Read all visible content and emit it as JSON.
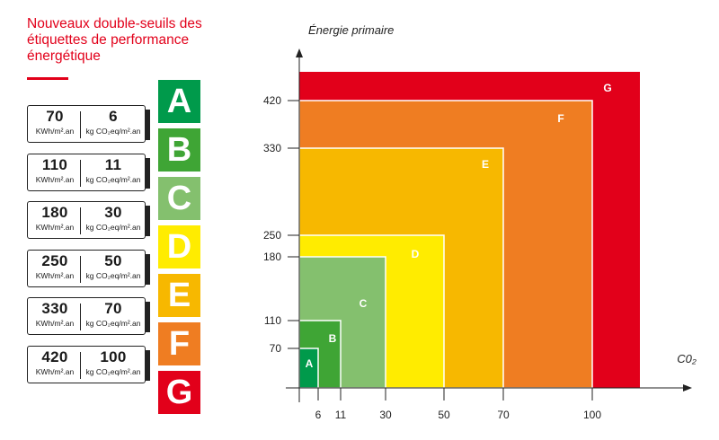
{
  "header": {
    "title": "Nouveaux double-seuils des étiquettes de performance énergétique"
  },
  "colors": {
    "accent": "#e2001a",
    "A": "#009a4b",
    "B": "#3fa535",
    "C": "#84c06e",
    "D": "#ffec00",
    "E": "#f7b800",
    "F": "#ef7d22",
    "G": "#e2001a"
  },
  "thresholds": [
    {
      "energy": "70",
      "energy_unit": "KWh/m².an",
      "co2": "6",
      "co2_unit": "kg CO₂eq/m².an"
    },
    {
      "energy": "110",
      "energy_unit": "KWh/m².an",
      "co2": "11",
      "co2_unit": "kg CO₂eq/m².an"
    },
    {
      "energy": "180",
      "energy_unit": "KWh/m².an",
      "co2": "30",
      "co2_unit": "kg CO₂eq/m².an"
    },
    {
      "energy": "250",
      "energy_unit": "KWh/m².an",
      "co2": "50",
      "co2_unit": "kg CO₂eq/m².an"
    },
    {
      "energy": "330",
      "energy_unit": "KWh/m².an",
      "co2": "70",
      "co2_unit": "kg CO₂eq/m².an"
    },
    {
      "energy": "420",
      "energy_unit": "KWh/m².an",
      "co2": "100",
      "co2_unit": "kg CO₂eq/m².an"
    }
  ],
  "classes": [
    "A",
    "B",
    "C",
    "D",
    "E",
    "F",
    "G"
  ],
  "chart_data": {
    "type": "area",
    "ylabel": "Énergie primaire",
    "xlabel": "C0₂",
    "x_ticks": [
      "6",
      "11",
      "30",
      "50",
      "70",
      "100"
    ],
    "y_ticks": [
      "70",
      "110",
      "180",
      "250",
      "330",
      "420"
    ],
    "regions": [
      {
        "label": "G",
        "x": 100,
        "y": 420,
        "color": "#e2001a"
      },
      {
        "label": "F",
        "x": 100,
        "y": 420,
        "color": "#ef7d22"
      },
      {
        "label": "E",
        "x": 70,
        "y": 330,
        "color": "#f7b800"
      },
      {
        "label": "D",
        "x": 50,
        "y": 250,
        "color": "#ffec00"
      },
      {
        "label": "C",
        "x": 30,
        "y": 180,
        "color": "#84c06e"
      },
      {
        "label": "B",
        "x": 11,
        "y": 110,
        "color": "#3fa535"
      },
      {
        "label": "A",
        "x": 6,
        "y": 70,
        "color": "#009a4b"
      }
    ]
  }
}
